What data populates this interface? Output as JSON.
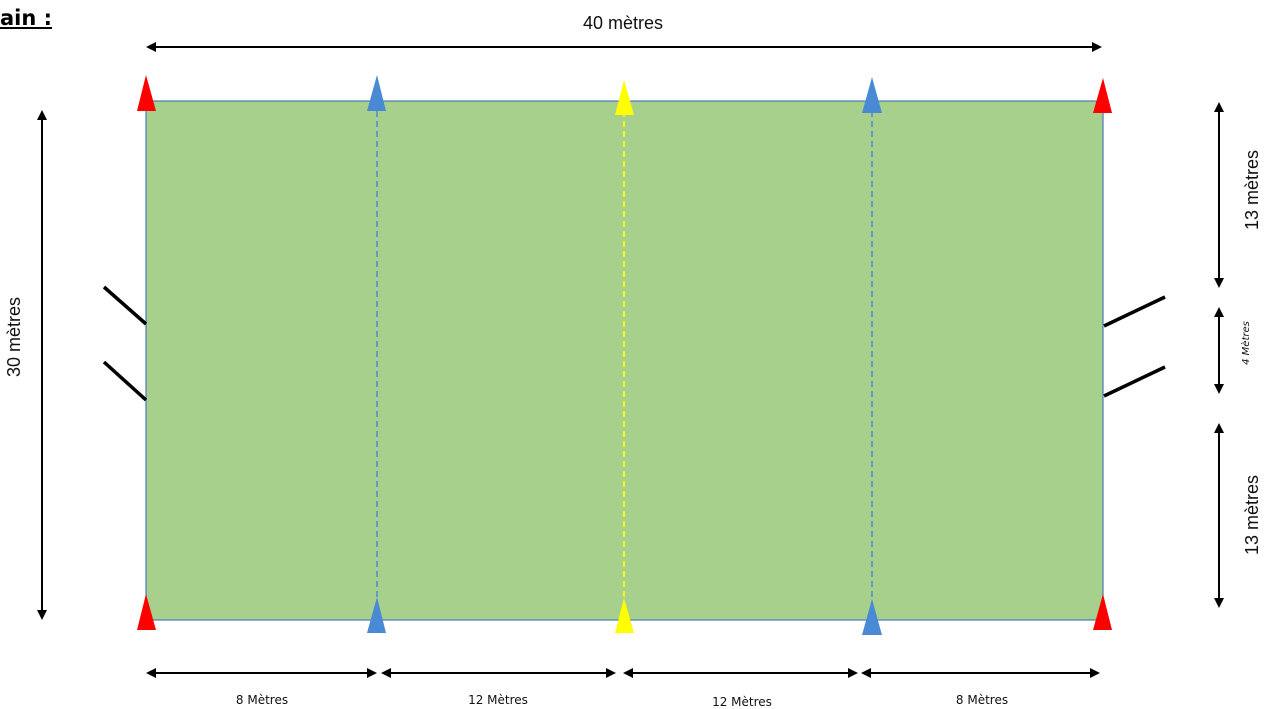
{
  "heading": {
    "fragment": "ain :"
  },
  "dimensions": {
    "width_label": "40 mètres",
    "height_label": "30 mètres",
    "right_top_label": "13 mètres",
    "right_mid_label": "4 Mètres",
    "right_bottom_label": "13 mètres",
    "bottom_segments": [
      "8 Mètres",
      "12 Mètres",
      "12 Mètres",
      "8 Mètres"
    ]
  },
  "colors": {
    "field_fill": "#a8d08d",
    "field_border": "#4a79b8",
    "cone_red": "#ff0000",
    "cone_blue": "#4a8ad4",
    "cone_yellow": "#ffff00",
    "dashed_blue": "#4a8ad4",
    "dashed_yellow": "#ffff00",
    "arrow": "#000000"
  },
  "cones": {
    "top": [
      "red",
      "blue",
      "yellow",
      "blue",
      "red"
    ],
    "bottom": [
      "red",
      "blue",
      "yellow",
      "blue",
      "red"
    ]
  }
}
